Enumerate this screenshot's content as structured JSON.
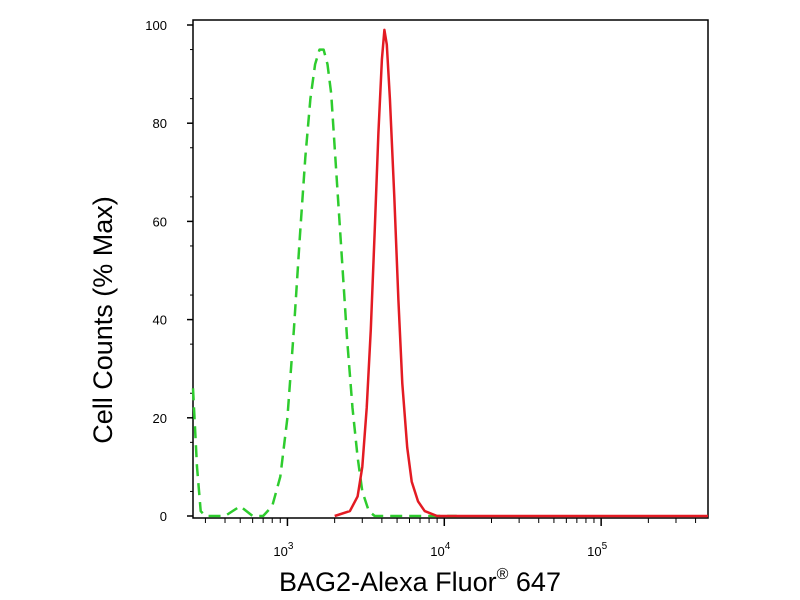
{
  "chart_data": {
    "type": "line",
    "title": "",
    "xlabel": "BAG2-Alexa Fluor",
    "xlabel_superscript": "®",
    "xlabel_suffix": " 647",
    "ylabel": "Cell Counts (% Max)",
    "x_scale": "log",
    "xlim": [
      250,
      480000
    ],
    "ylim": [
      0,
      100
    ],
    "grid": false,
    "y_ticks": [
      0,
      20,
      40,
      60,
      80,
      100
    ],
    "x_major_ticks": [
      {
        "value": 1000,
        "base": "10",
        "exp": "3"
      },
      {
        "value": 10000,
        "base": "10",
        "exp": "4"
      },
      {
        "value": 100000,
        "base": "10",
        "exp": "5"
      }
    ],
    "series": [
      {
        "color": "#2ecc2e",
        "style": "dashed",
        "points": [
          [
            250,
            26
          ],
          [
            265,
            10
          ],
          [
            280,
            1
          ],
          [
            300,
            0
          ],
          [
            400,
            0
          ],
          [
            500,
            2
          ],
          [
            600,
            0
          ],
          [
            700,
            0
          ],
          [
            800,
            2
          ],
          [
            900,
            8
          ],
          [
            1000,
            20
          ],
          [
            1100,
            38
          ],
          [
            1200,
            57
          ],
          [
            1300,
            73
          ],
          [
            1400,
            85
          ],
          [
            1500,
            92
          ],
          [
            1600,
            95
          ],
          [
            1700,
            95
          ],
          [
            1800,
            92
          ],
          [
            1900,
            86
          ],
          [
            2000,
            75
          ],
          [
            2200,
            55
          ],
          [
            2400,
            36
          ],
          [
            2600,
            22
          ],
          [
            2800,
            12
          ],
          [
            3000,
            5
          ],
          [
            3300,
            1
          ],
          [
            3600,
            0
          ],
          [
            5000,
            0
          ],
          [
            8000,
            0
          ],
          [
            12000,
            0
          ]
        ]
      },
      {
        "color": "#e31b23",
        "style": "solid",
        "points": [
          [
            2000,
            0
          ],
          [
            2500,
            1
          ],
          [
            2800,
            4
          ],
          [
            3000,
            10
          ],
          [
            3200,
            22
          ],
          [
            3400,
            38
          ],
          [
            3600,
            58
          ],
          [
            3800,
            78
          ],
          [
            4000,
            93
          ],
          [
            4150,
            99
          ],
          [
            4300,
            96
          ],
          [
            4500,
            85
          ],
          [
            4800,
            65
          ],
          [
            5100,
            44
          ],
          [
            5400,
            27
          ],
          [
            5800,
            14
          ],
          [
            6200,
            7
          ],
          [
            6800,
            3
          ],
          [
            7500,
            1
          ],
          [
            9000,
            0
          ],
          [
            20000,
            0
          ],
          [
            100000,
            0
          ],
          [
            480000,
            0
          ]
        ]
      }
    ]
  }
}
